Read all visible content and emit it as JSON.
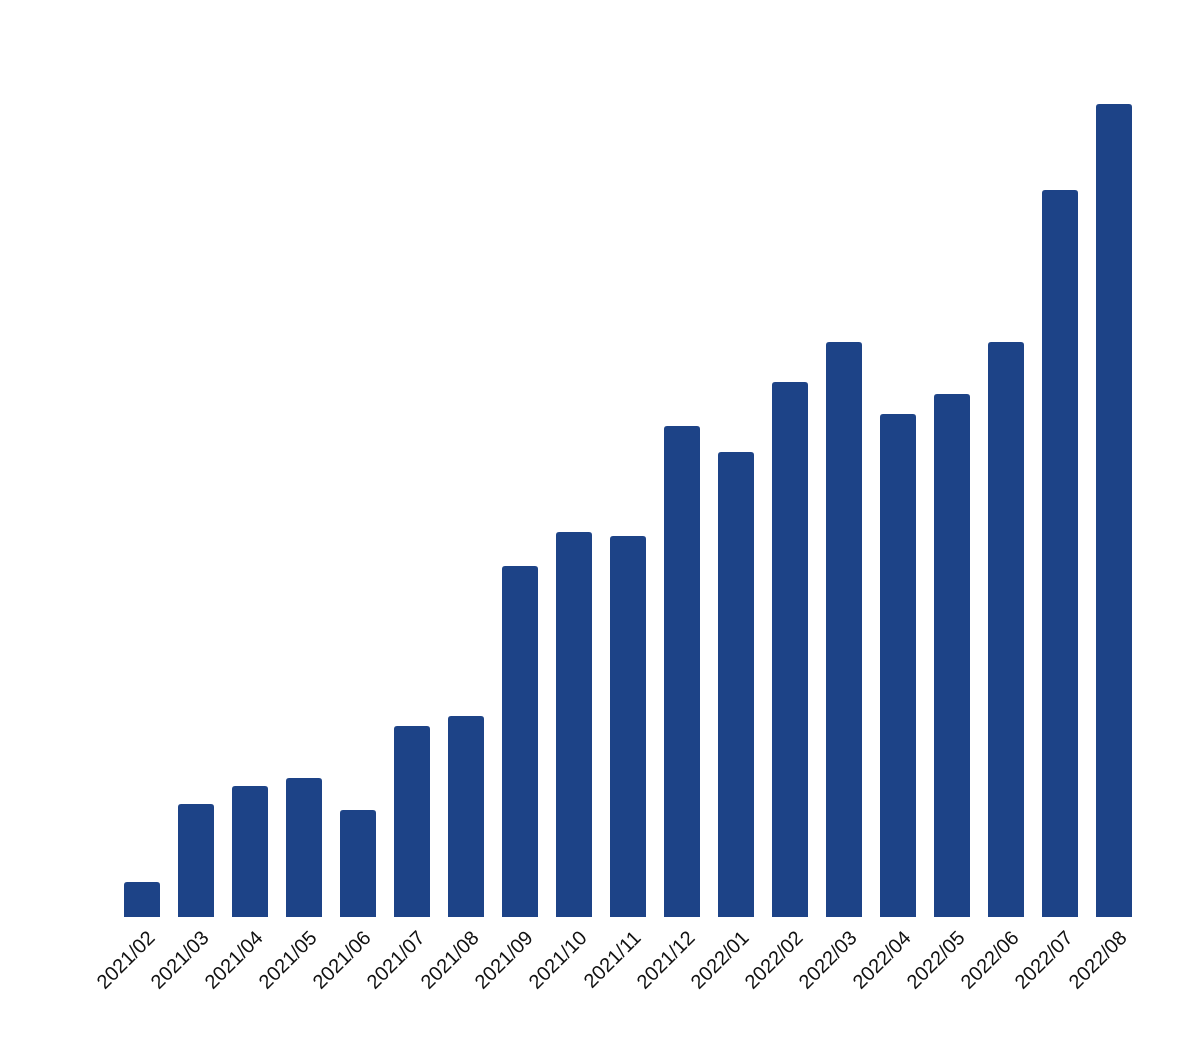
{
  "chart_data": {
    "type": "bar",
    "color": "#1d4387",
    "categories": [
      "2021/02",
      "2021/03",
      "2021/04",
      "2021/05",
      "2021/06",
      "2021/07",
      "2021/08",
      "2021/09",
      "2021/10",
      "2021/11",
      "2021/12",
      "2022/01",
      "2022/02",
      "2022/03",
      "2022/04",
      "2022/05",
      "2022/06",
      "2022/07",
      "2022/08"
    ],
    "values": [
      35,
      113,
      131,
      139,
      107,
      191,
      201,
      351,
      385,
      381,
      491,
      465,
      535,
      575,
      503,
      523,
      575,
      727,
      813
    ],
    "ylim": [
      0,
      813
    ]
  }
}
